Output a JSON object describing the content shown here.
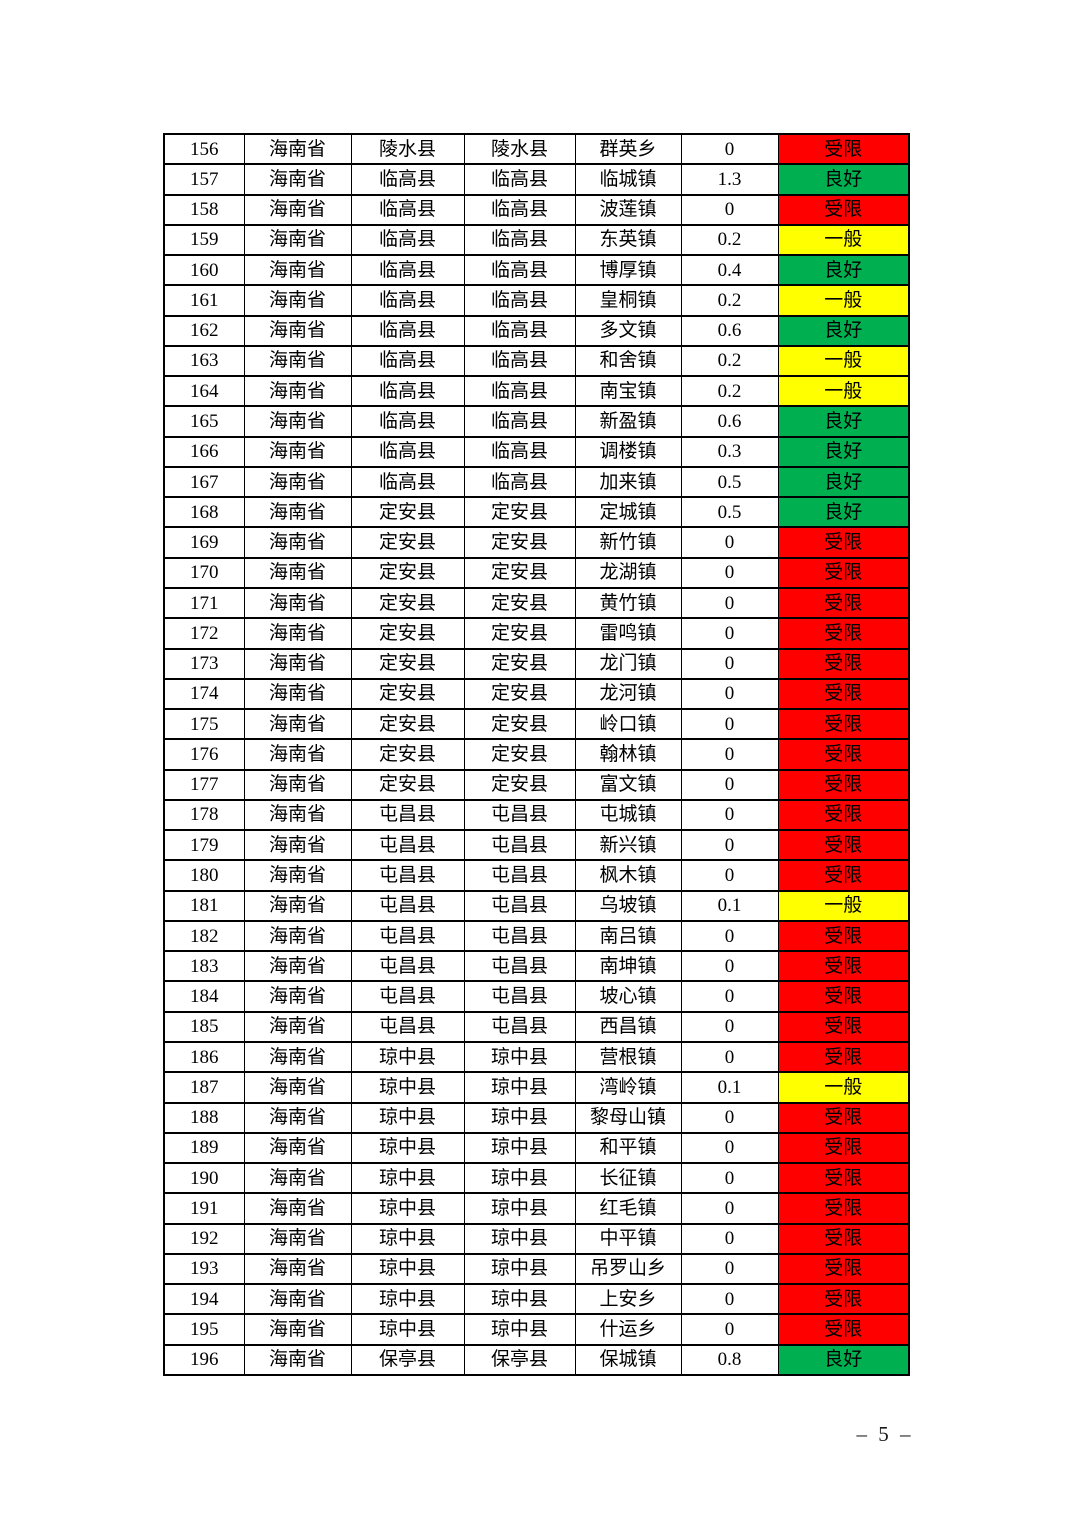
{
  "page": {
    "footer_page_number": "– 5 –"
  },
  "status_colors": {
    "受限": "#FF0000",
    "良好": "#00B050",
    "一般": "#FFFF00"
  },
  "table": {
    "columns": [
      "no",
      "province",
      "city",
      "county",
      "town",
      "value",
      "status"
    ],
    "rows": [
      {
        "no": "156",
        "province": "海南省",
        "city": "陵水县",
        "county": "陵水县",
        "town": "群英乡",
        "value": "0",
        "status": "受限"
      },
      {
        "no": "157",
        "province": "海南省",
        "city": "临高县",
        "county": "临高县",
        "town": "临城镇",
        "value": "1.3",
        "status": "良好"
      },
      {
        "no": "158",
        "province": "海南省",
        "city": "临高县",
        "county": "临高县",
        "town": "波莲镇",
        "value": "0",
        "status": "受限"
      },
      {
        "no": "159",
        "province": "海南省",
        "city": "临高县",
        "county": "临高县",
        "town": "东英镇",
        "value": "0.2",
        "status": "一般"
      },
      {
        "no": "160",
        "province": "海南省",
        "city": "临高县",
        "county": "临高县",
        "town": "博厚镇",
        "value": "0.4",
        "status": "良好"
      },
      {
        "no": "161",
        "province": "海南省",
        "city": "临高县",
        "county": "临高县",
        "town": "皇桐镇",
        "value": "0.2",
        "status": "一般"
      },
      {
        "no": "162",
        "province": "海南省",
        "city": "临高县",
        "county": "临高县",
        "town": "多文镇",
        "value": "0.6",
        "status": "良好"
      },
      {
        "no": "163",
        "province": "海南省",
        "city": "临高县",
        "county": "临高县",
        "town": "和舍镇",
        "value": "0.2",
        "status": "一般"
      },
      {
        "no": "164",
        "province": "海南省",
        "city": "临高县",
        "county": "临高县",
        "town": "南宝镇",
        "value": "0.2",
        "status": "一般"
      },
      {
        "no": "165",
        "province": "海南省",
        "city": "临高县",
        "county": "临高县",
        "town": "新盈镇",
        "value": "0.6",
        "status": "良好"
      },
      {
        "no": "166",
        "province": "海南省",
        "city": "临高县",
        "county": "临高县",
        "town": "调楼镇",
        "value": "0.3",
        "status": "良好"
      },
      {
        "no": "167",
        "province": "海南省",
        "city": "临高县",
        "county": "临高县",
        "town": "加来镇",
        "value": "0.5",
        "status": "良好"
      },
      {
        "no": "168",
        "province": "海南省",
        "city": "定安县",
        "county": "定安县",
        "town": "定城镇",
        "value": "0.5",
        "status": "良好"
      },
      {
        "no": "169",
        "province": "海南省",
        "city": "定安县",
        "county": "定安县",
        "town": "新竹镇",
        "value": "0",
        "status": "受限"
      },
      {
        "no": "170",
        "province": "海南省",
        "city": "定安县",
        "county": "定安县",
        "town": "龙湖镇",
        "value": "0",
        "status": "受限"
      },
      {
        "no": "171",
        "province": "海南省",
        "city": "定安县",
        "county": "定安县",
        "town": "黄竹镇",
        "value": "0",
        "status": "受限"
      },
      {
        "no": "172",
        "province": "海南省",
        "city": "定安县",
        "county": "定安县",
        "town": "雷鸣镇",
        "value": "0",
        "status": "受限"
      },
      {
        "no": "173",
        "province": "海南省",
        "city": "定安县",
        "county": "定安县",
        "town": "龙门镇",
        "value": "0",
        "status": "受限"
      },
      {
        "no": "174",
        "province": "海南省",
        "city": "定安县",
        "county": "定安县",
        "town": "龙河镇",
        "value": "0",
        "status": "受限"
      },
      {
        "no": "175",
        "province": "海南省",
        "city": "定安县",
        "county": "定安县",
        "town": "岭口镇",
        "value": "0",
        "status": "受限"
      },
      {
        "no": "176",
        "province": "海南省",
        "city": "定安县",
        "county": "定安县",
        "town": "翰林镇",
        "value": "0",
        "status": "受限"
      },
      {
        "no": "177",
        "province": "海南省",
        "city": "定安县",
        "county": "定安县",
        "town": "富文镇",
        "value": "0",
        "status": "受限"
      },
      {
        "no": "178",
        "province": "海南省",
        "city": "屯昌县",
        "county": "屯昌县",
        "town": "屯城镇",
        "value": "0",
        "status": "受限"
      },
      {
        "no": "179",
        "province": "海南省",
        "city": "屯昌县",
        "county": "屯昌县",
        "town": "新兴镇",
        "value": "0",
        "status": "受限"
      },
      {
        "no": "180",
        "province": "海南省",
        "city": "屯昌县",
        "county": "屯昌县",
        "town": "枫木镇",
        "value": "0",
        "status": "受限"
      },
      {
        "no": "181",
        "province": "海南省",
        "city": "屯昌县",
        "county": "屯昌县",
        "town": "乌坡镇",
        "value": "0.1",
        "status": "一般"
      },
      {
        "no": "182",
        "province": "海南省",
        "city": "屯昌县",
        "county": "屯昌县",
        "town": "南吕镇",
        "value": "0",
        "status": "受限"
      },
      {
        "no": "183",
        "province": "海南省",
        "city": "屯昌县",
        "county": "屯昌县",
        "town": "南坤镇",
        "value": "0",
        "status": "受限"
      },
      {
        "no": "184",
        "province": "海南省",
        "city": "屯昌县",
        "county": "屯昌县",
        "town": "坡心镇",
        "value": "0",
        "status": "受限"
      },
      {
        "no": "185",
        "province": "海南省",
        "city": "屯昌县",
        "county": "屯昌县",
        "town": "西昌镇",
        "value": "0",
        "status": "受限"
      },
      {
        "no": "186",
        "province": "海南省",
        "city": "琼中县",
        "county": "琼中县",
        "town": "营根镇",
        "value": "0",
        "status": "受限"
      },
      {
        "no": "187",
        "province": "海南省",
        "city": "琼中县",
        "county": "琼中县",
        "town": "湾岭镇",
        "value": "0.1",
        "status": "一般"
      },
      {
        "no": "188",
        "province": "海南省",
        "city": "琼中县",
        "county": "琼中县",
        "town": "黎母山镇",
        "value": "0",
        "status": "受限"
      },
      {
        "no": "189",
        "province": "海南省",
        "city": "琼中县",
        "county": "琼中县",
        "town": "和平镇",
        "value": "0",
        "status": "受限"
      },
      {
        "no": "190",
        "province": "海南省",
        "city": "琼中县",
        "county": "琼中县",
        "town": "长征镇",
        "value": "0",
        "status": "受限"
      },
      {
        "no": "191",
        "province": "海南省",
        "city": "琼中县",
        "county": "琼中县",
        "town": "红毛镇",
        "value": "0",
        "status": "受限"
      },
      {
        "no": "192",
        "province": "海南省",
        "city": "琼中县",
        "county": "琼中县",
        "town": "中平镇",
        "value": "0",
        "status": "受限"
      },
      {
        "no": "193",
        "province": "海南省",
        "city": "琼中县",
        "county": "琼中县",
        "town": "吊罗山乡",
        "value": "0",
        "status": "受限"
      },
      {
        "no": "194",
        "province": "海南省",
        "city": "琼中县",
        "county": "琼中县",
        "town": "上安乡",
        "value": "0",
        "status": "受限"
      },
      {
        "no": "195",
        "province": "海南省",
        "city": "琼中县",
        "county": "琼中县",
        "town": "什运乡",
        "value": "0",
        "status": "受限"
      },
      {
        "no": "196",
        "province": "海南省",
        "city": "保亭县",
        "county": "保亭县",
        "town": "保城镇",
        "value": "0.8",
        "status": "良好"
      }
    ]
  }
}
